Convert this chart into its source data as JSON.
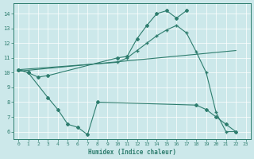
{
  "color": "#2e7d6e",
  "bg_color": "#cce8ea",
  "xlabel": "Humidex (Indice chaleur)",
  "xlim": [
    -0.5,
    23.5
  ],
  "ylim": [
    5.5,
    14.7
  ],
  "yticks": [
    6,
    7,
    8,
    9,
    10,
    11,
    12,
    13,
    14
  ],
  "xticks": [
    0,
    1,
    2,
    3,
    4,
    5,
    6,
    7,
    8,
    9,
    10,
    11,
    12,
    13,
    14,
    15,
    16,
    17,
    18,
    19,
    20,
    21,
    22,
    23
  ],
  "line_upper_x": [
    0,
    1,
    2,
    3,
    10,
    11,
    12,
    13,
    14,
    15,
    16,
    17
  ],
  "line_upper_y": [
    10.2,
    10.0,
    9.7,
    9.8,
    11.0,
    11.1,
    12.3,
    13.2,
    14.0,
    14.2,
    13.7,
    14.2
  ],
  "line_mid_x": [
    0,
    10,
    11,
    12,
    13,
    14,
    15,
    16,
    17,
    18,
    19,
    20,
    21,
    22
  ],
  "line_mid_y": [
    10.2,
    10.7,
    11.0,
    11.5,
    12.0,
    12.5,
    12.9,
    13.2,
    12.7,
    11.4,
    10.0,
    7.3,
    6.0,
    6.0
  ],
  "line_lower_x": [
    0,
    1,
    3,
    4,
    5,
    6,
    7,
    8,
    18,
    19,
    20,
    21,
    22
  ],
  "line_lower_y": [
    10.2,
    10.0,
    8.3,
    7.5,
    6.5,
    6.3,
    5.8,
    8.0,
    7.8,
    7.5,
    7.0,
    6.5,
    6.0
  ],
  "trend_x": [
    0,
    22
  ],
  "trend_y": [
    10.1,
    11.5
  ]
}
